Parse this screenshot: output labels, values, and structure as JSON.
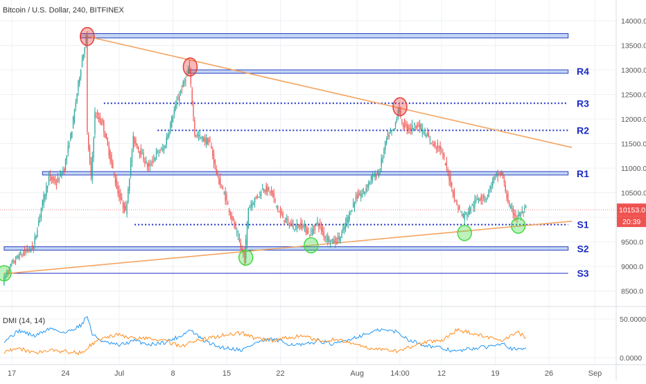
{
  "header": {
    "title": "Bitcoin / U.S. Dollar, 240, BITFINEX"
  },
  "colors": {
    "up": "#26a69a",
    "down": "#ef5350",
    "zone_fill": "#a8c4f0",
    "zone_stroke": "#2a3fbf",
    "level": "#1a2bc4",
    "trendline": "#f4a460",
    "red_marker": "#e53935",
    "green_marker": "#43d843",
    "price_badge": "#ef5350",
    "dmi_plus": "#2196f3",
    "dmi_minus": "#ff8c1a",
    "grid": "#eef0f4"
  },
  "chart_data": [
    {
      "type": "candlestick",
      "title": "Bitcoin / U.S. Dollar, 240, BITFINEX",
      "x_tick_labels": [
        "17",
        "24",
        "Jul",
        "8",
        "15",
        "22",
        "Aug",
        "14:00",
        "12",
        "19",
        "26",
        "Sep"
      ],
      "y_tick_labels": [
        "14000.0",
        "13500.0",
        "13000.0",
        "12500.0",
        "12000.0",
        "11500.0",
        "11000.0",
        "10500.0",
        "10000.0",
        "9500.0",
        "9000.0",
        "8500.0"
      ],
      "ylim": [
        8200,
        14300
      ],
      "last_price": "10153.0",
      "countdown": "20:39",
      "candle_points": [
        [
          "06-16 00:00",
          8700
        ],
        [
          "06-17 00:00",
          9000
        ],
        [
          "06-18 00:00",
          9200
        ],
        [
          "06-19 00:00",
          9300
        ],
        [
          "06-20 00:00",
          9400
        ],
        [
          "06-21 00:00",
          10200
        ],
        [
          "06-22 00:00",
          10800
        ],
        [
          "06-23 00:00",
          10700
        ],
        [
          "06-24 00:00",
          11000
        ],
        [
          "06-25 00:00",
          11800
        ],
        [
          "06-26 00:00",
          12900
        ],
        [
          "06-26 20:00",
          13650
        ],
        [
          "06-27 00:00",
          11700
        ],
        [
          "06-27 12:00",
          10800
        ],
        [
          "06-28 00:00",
          12100
        ],
        [
          "06-29 00:00",
          11900
        ],
        [
          "06-30 00:00",
          11200
        ],
        [
          "07-01 00:00",
          10500
        ],
        [
          "07-02 00:00",
          10100
        ],
        [
          "07-03 00:00",
          11600
        ],
        [
          "07-04 00:00",
          11300
        ],
        [
          "07-05 00:00",
          11000
        ],
        [
          "07-06 00:00",
          11300
        ],
        [
          "07-07 00:00",
          11400
        ],
        [
          "07-08 00:00",
          12000
        ],
        [
          "07-09 00:00",
          12500
        ],
        [
          "07-10 00:00",
          12900
        ],
        [
          "07-10 06:00",
          13100
        ],
        [
          "07-10 18:00",
          12200
        ],
        [
          "07-11 00:00",
          11700
        ],
        [
          "07-12 00:00",
          11600
        ],
        [
          "07-13 00:00",
          11500
        ],
        [
          "07-14 00:00",
          10800
        ],
        [
          "07-15 00:00",
          10400
        ],
        [
          "07-16 00:00",
          9900
        ],
        [
          "07-17 00:00",
          9400
        ],
        [
          "07-17 12:00",
          9150
        ],
        [
          "07-18 00:00",
          10200
        ],
        [
          "07-19 00:00",
          10400
        ],
        [
          "07-20 00:00",
          10600
        ],
        [
          "07-21 00:00",
          10500
        ],
        [
          "07-22 00:00",
          10100
        ],
        [
          "07-23 00:00",
          9900
        ],
        [
          "07-24 00:00",
          9800
        ],
        [
          "07-25 00:00",
          9850
        ],
        [
          "07-26 00:00",
          9650
        ],
        [
          "07-27 00:00",
          9900
        ],
        [
          "07-28 00:00",
          9600
        ],
        [
          "07-29 00:00",
          9500
        ],
        [
          "07-30 00:00",
          9600
        ],
        [
          "07-31 00:00",
          10000
        ],
        [
          "08-01 00:00",
          10400
        ],
        [
          "08-02 00:00",
          10500
        ],
        [
          "08-03 00:00",
          10800
        ],
        [
          "08-04 00:00",
          10900
        ],
        [
          "08-05 00:00",
          11600
        ],
        [
          "08-06 00:00",
          11800
        ],
        [
          "08-06 14:00",
          12250
        ],
        [
          "08-07 00:00",
          11900
        ],
        [
          "08-08 00:00",
          11800
        ],
        [
          "08-09 00:00",
          11900
        ],
        [
          "08-10 00:00",
          11700
        ],
        [
          "08-11 00:00",
          11500
        ],
        [
          "08-12 00:00",
          11400
        ],
        [
          "08-13 00:00",
          10900
        ],
        [
          "08-14 00:00",
          10300
        ],
        [
          "08-15 00:00",
          10000
        ],
        [
          "08-16 00:00",
          10200
        ],
        [
          "08-17 00:00",
          10400
        ],
        [
          "08-18 00:00",
          10400
        ],
        [
          "08-19 00:00",
          10800
        ],
        [
          "08-20 00:00",
          10900
        ],
        [
          "08-21 00:00",
          10200
        ],
        [
          "08-22 00:00",
          10000
        ],
        [
          "08-23 00:00",
          10150
        ]
      ],
      "annotations": {
        "zones": [
          {
            "x_start": "06-26 00:00",
            "x_end": "08-28 12:00",
            "y_low": 13650,
            "y_high": 13740
          },
          {
            "x_start": "07-10 00:00",
            "x_end": "08-28 12:00",
            "y_low": 12930,
            "y_high": 13000
          },
          {
            "x_start": "06-21 00:00",
            "x_end": "08-28 12:00",
            "y_low": 10860,
            "y_high": 10930
          },
          {
            "x_start": "06-16 00:00",
            "x_end": "08-28 12:00",
            "y_low": 9330,
            "y_high": 9400
          }
        ],
        "dotted_levels": [
          {
            "x_start": "06-29 00:00",
            "x_end": "08-28 12:00",
            "y": 12320
          },
          {
            "x_start": "07-06 00:00",
            "x_end": "08-28 12:00",
            "y": 11770
          },
          {
            "x_start": "07-03 00:00",
            "x_end": "08-28 12:00",
            "y": 9850
          }
        ],
        "solid_levels": [
          {
            "x_start": "06-16 00:00",
            "x_end": "08-28 12:00",
            "y": 8860
          }
        ],
        "trendlines": [
          {
            "x1": "06-26 20:00",
            "y1": 13680,
            "x2": "08-29 00:00",
            "y2": 11420
          },
          {
            "x1": "06-16 00:00",
            "y1": 8850,
            "x2": "08-29 00:00",
            "y2": 9920
          }
        ],
        "level_labels": [
          {
            "text": "R4",
            "y": 12970
          },
          {
            "text": "R3",
            "y": 12320
          },
          {
            "text": "R2",
            "y": 11770
          },
          {
            "text": "R1",
            "y": 10890
          },
          {
            "text": "S1",
            "y": 9850
          },
          {
            "text": "S2",
            "y": 9360
          },
          {
            "text": "S3",
            "y": 8860
          }
        ],
        "red_circles": [
          {
            "x": "06-26 20:00",
            "y": 13680
          },
          {
            "x": "07-10 06:00",
            "y": 13060
          },
          {
            "x": "08-06 14:00",
            "y": 12250
          }
        ],
        "green_circles": [
          {
            "x": "06-16 00:00",
            "y": 8860
          },
          {
            "x": "07-17 12:00",
            "y": 9180
          },
          {
            "x": "07-26 00:00",
            "y": 9430
          },
          {
            "x": "08-15 00:00",
            "y": 9680
          },
          {
            "x": "08-22 00:00",
            "y": 9830
          }
        ]
      }
    },
    {
      "type": "line",
      "title": "DMI (14, 14)",
      "y_tick_labels": [
        "50.0000",
        "0.0000"
      ],
      "ylim": [
        0,
        58
      ],
      "series": [
        {
          "color": "#2196f3",
          "points": [
            [
              "06-16 00:00",
              22
            ],
            [
              "06-18 00:00",
              35
            ],
            [
              "06-20 00:00",
              28
            ],
            [
              "06-22 00:00",
              38
            ],
            [
              "06-24 00:00",
              32
            ],
            [
              "06-26 00:00",
              42
            ],
            [
              "06-26 20:00",
              54
            ],
            [
              "06-27 12:00",
              30
            ],
            [
              "06-29 00:00",
              20
            ],
            [
              "07-01 00:00",
              16
            ],
            [
              "07-03 00:00",
              22
            ],
            [
              "07-05 00:00",
              17
            ],
            [
              "07-07 00:00",
              20
            ],
            [
              "07-09 00:00",
              28
            ],
            [
              "07-10 06:00",
              36
            ],
            [
              "07-12 00:00",
              22
            ],
            [
              "07-14 00:00",
              14
            ],
            [
              "07-17 00:00",
              10
            ],
            [
              "07-19 00:00",
              20
            ],
            [
              "07-21 00:00",
              24
            ],
            [
              "07-23 00:00",
              18
            ],
            [
              "07-25 00:00",
              16
            ],
            [
              "07-27 00:00",
              22
            ],
            [
              "07-29 00:00",
              17
            ],
            [
              "07-31 00:00",
              24
            ],
            [
              "08-02 00:00",
              30
            ],
            [
              "08-04 00:00",
              36
            ],
            [
              "08-06 00:00",
              34
            ],
            [
              "08-08 00:00",
              22
            ],
            [
              "08-10 00:00",
              16
            ],
            [
              "08-12 00:00",
              12
            ],
            [
              "08-14 00:00",
              8
            ],
            [
              "08-16 00:00",
              12
            ],
            [
              "08-18 00:00",
              14
            ],
            [
              "08-20 00:00",
              20
            ],
            [
              "08-21 00:00",
              12
            ],
            [
              "08-22 00:00",
              10
            ],
            [
              "08-23 00:00",
              13
            ]
          ]
        },
        {
          "color": "#ff8c1a",
          "points": [
            [
              "06-16 00:00",
              8
            ],
            [
              "06-18 00:00",
              12
            ],
            [
              "06-20 00:00",
              6
            ],
            [
              "06-22 00:00",
              10
            ],
            [
              "06-24 00:00",
              8
            ],
            [
              "06-26 00:00",
              6
            ],
            [
              "06-27 12:00",
              18
            ],
            [
              "06-29 00:00",
              26
            ],
            [
              "07-01 00:00",
              30
            ],
            [
              "07-03 00:00",
              24
            ],
            [
              "07-05 00:00",
              26
            ],
            [
              "07-07 00:00",
              22
            ],
            [
              "07-09 00:00",
              14
            ],
            [
              "07-11 00:00",
              22
            ],
            [
              "07-13 00:00",
              26
            ],
            [
              "07-15 00:00",
              30
            ],
            [
              "07-17 00:00",
              32
            ],
            [
              "07-19 00:00",
              24
            ],
            [
              "07-21 00:00",
              22
            ],
            [
              "07-23 00:00",
              26
            ],
            [
              "07-25 00:00",
              28
            ],
            [
              "07-27 00:00",
              22
            ],
            [
              "07-29 00:00",
              24
            ],
            [
              "07-31 00:00",
              20
            ],
            [
              "08-02 00:00",
              14
            ],
            [
              "08-04 00:00",
              10
            ],
            [
              "08-06 00:00",
              8
            ],
            [
              "08-08 00:00",
              14
            ],
            [
              "08-10 00:00",
              20
            ],
            [
              "08-12 00:00",
              22
            ],
            [
              "08-14 00:00",
              36
            ],
            [
              "08-16 00:00",
              32
            ],
            [
              "08-18 00:00",
              26
            ],
            [
              "08-20 00:00",
              22
            ],
            [
              "08-21 00:00",
              28
            ],
            [
              "08-22 00:00",
              32
            ],
            [
              "08-23 00:00",
              26
            ]
          ]
        }
      ]
    }
  ]
}
